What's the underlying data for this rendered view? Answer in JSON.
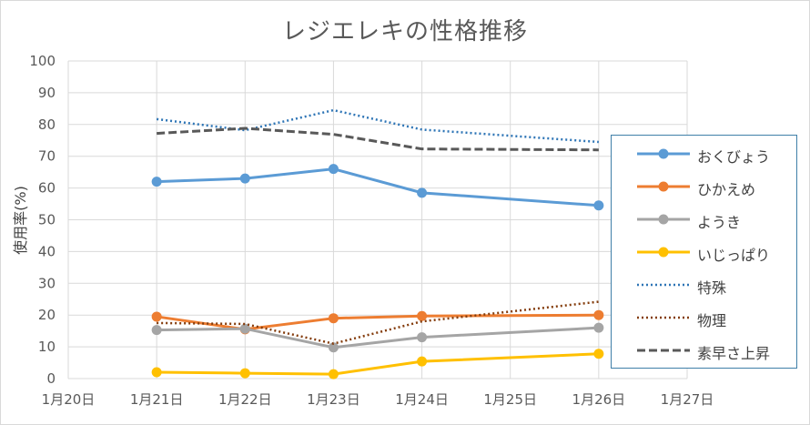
{
  "chart_data": {
    "type": "line",
    "title": "レジエレキの性格推移",
    "ylabel": "使用率(%)",
    "xlabel": "",
    "x_ticks": [
      "1月20日",
      "1月21日",
      "1月22日",
      "1月23日",
      "1月24日",
      "1月25日",
      "1月26日",
      "1月27日"
    ],
    "y_ticks": [
      "0",
      "10",
      "20",
      "30",
      "40",
      "50",
      "60",
      "70",
      "80",
      "90",
      "100"
    ],
    "ylim": [
      0,
      100
    ],
    "grid": true,
    "legend_position": "right",
    "x": [
      "1月21日",
      "1月22日",
      "1月23日",
      "1月24日",
      "1月26日"
    ],
    "series": [
      {
        "name": "おくびょう",
        "values": [
          62,
          63,
          66,
          58.5,
          54.5
        ],
        "color": "#5b9bd5",
        "style": "solid-marker"
      },
      {
        "name": "ひかえめ",
        "values": [
          19.5,
          15.5,
          19,
          19.7,
          20
        ],
        "color": "#ed7d31",
        "style": "solid-marker"
      },
      {
        "name": "ようき",
        "values": [
          15.3,
          15.7,
          9.8,
          13,
          16
        ],
        "color": "#a5a5a5",
        "style": "solid-marker"
      },
      {
        "name": "いじっぱり",
        "values": [
          2,
          1.7,
          1.4,
          5.4,
          7.8
        ],
        "color": "#ffc000",
        "style": "solid-marker"
      },
      {
        "name": "特殊",
        "values": [
          81.7,
          78.2,
          84.5,
          78.4,
          74.5
        ],
        "color": "#2e75b6",
        "style": "dotted"
      },
      {
        "name": "物理",
        "values": [
          17.5,
          17.2,
          11,
          18,
          24.2
        ],
        "color": "#843c0c",
        "style": "dotted"
      },
      {
        "name": "素早さ上昇",
        "values": [
          77.2,
          78.8,
          76.9,
          72.3,
          72
        ],
        "color": "#595959",
        "style": "dashed"
      }
    ]
  }
}
